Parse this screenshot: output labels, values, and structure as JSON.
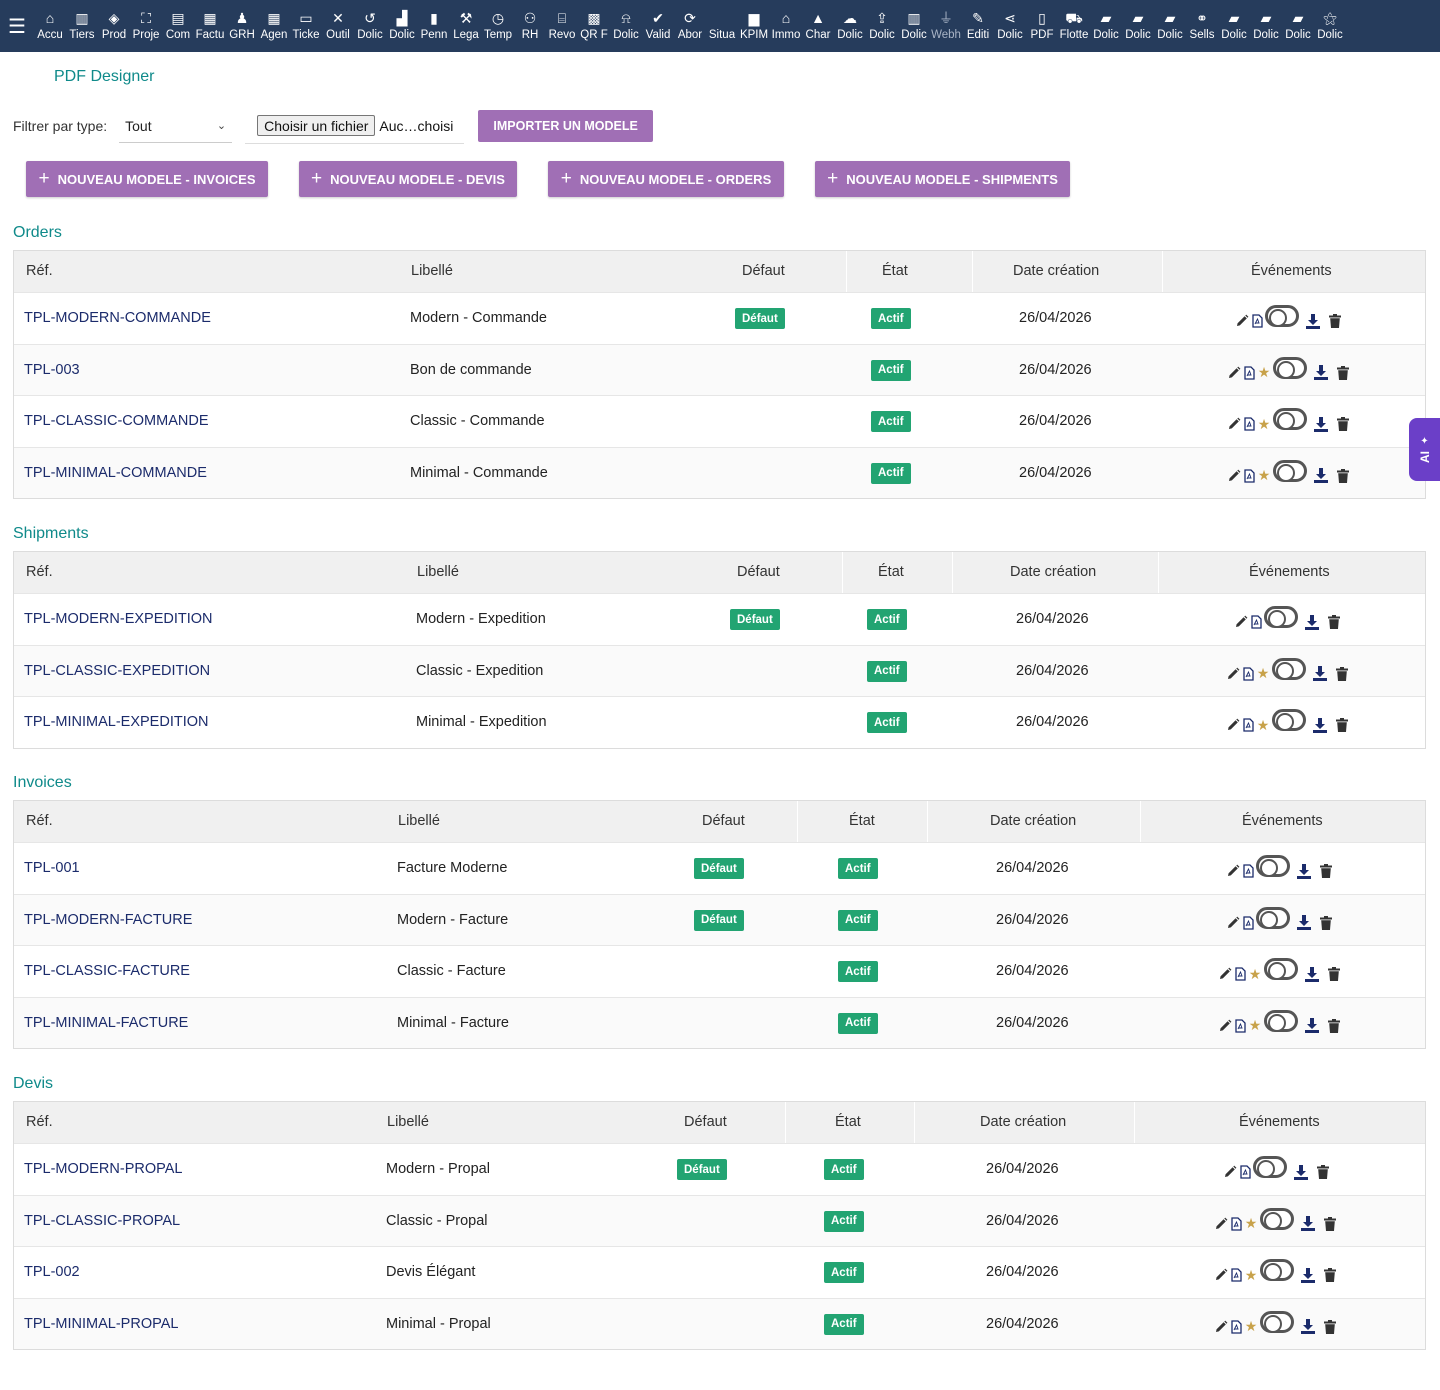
{
  "topbar": {
    "menu": [
      {
        "label": "Accu",
        "icon": "home-icon",
        "glyph": "⌂"
      },
      {
        "label": "Tiers",
        "icon": "building-icon",
        "glyph": "▥"
      },
      {
        "label": "Prod",
        "icon": "cube-icon",
        "glyph": "◈"
      },
      {
        "label": "Proje",
        "icon": "sitemap-icon",
        "glyph": "⛶"
      },
      {
        "label": "Com",
        "icon": "briefcase-icon",
        "glyph": "▤"
      },
      {
        "label": "Factu",
        "icon": "invoice-icon",
        "glyph": "▦"
      },
      {
        "label": "GRH",
        "icon": "user-tie-icon",
        "glyph": "♟"
      },
      {
        "label": "Agen",
        "icon": "calendar-icon",
        "glyph": "▦"
      },
      {
        "label": "Ticke",
        "icon": "ticket-icon",
        "glyph": "▭"
      },
      {
        "label": "Outil",
        "icon": "tools-icon",
        "glyph": "✕"
      },
      {
        "label": "Dolic",
        "icon": "undo-icon",
        "glyph": "↺"
      },
      {
        "label": "Dolic",
        "icon": "cash-register-icon",
        "glyph": "▟"
      },
      {
        "label": "Penn",
        "icon": "document-icon",
        "glyph": "▮"
      },
      {
        "label": "Lega",
        "icon": "gavel-icon",
        "glyph": "⚒"
      },
      {
        "label": "Temp",
        "icon": "clock-icon",
        "glyph": "◷"
      },
      {
        "label": "RH",
        "icon": "users-icon",
        "glyph": "⚇"
      },
      {
        "label": "Revo",
        "icon": "bank-icon",
        "glyph": "⌸"
      },
      {
        "label": "QR F",
        "icon": "qrcode-icon",
        "glyph": "▩"
      },
      {
        "label": "Dolic",
        "icon": "bell-icon",
        "glyph": "⍾"
      },
      {
        "label": "Valid",
        "icon": "check-double-icon",
        "glyph": "✔"
      },
      {
        "label": "Abor",
        "icon": "sync-icon",
        "glyph": "⟳"
      },
      {
        "label": "Situa",
        "icon": "blank-icon",
        "glyph": " "
      },
      {
        "label": "KPIM",
        "icon": "bar-chart-icon",
        "glyph": "▆"
      },
      {
        "label": "Immo",
        "icon": "house-icon",
        "glyph": "⌂"
      },
      {
        "label": "Char",
        "icon": "warehouse-icon",
        "glyph": "▲"
      },
      {
        "label": "Dolic",
        "icon": "cloud-icon",
        "glyph": "☁"
      },
      {
        "label": "Dolic",
        "icon": "upload-icon",
        "glyph": "⇪"
      },
      {
        "label": "Dolic",
        "icon": "building-alt-icon",
        "glyph": "▥"
      },
      {
        "label": "Webh",
        "icon": "plug-icon",
        "glyph": "⏚",
        "dim": true
      },
      {
        "label": "Editi",
        "icon": "edit-icon",
        "glyph": "✎"
      },
      {
        "label": "Dolic",
        "icon": "share-icon",
        "glyph": "⋖"
      },
      {
        "label": "PDF",
        "icon": "file-pdf-icon",
        "glyph": "▯"
      },
      {
        "label": "Flotte",
        "icon": "car-icon",
        "glyph": "⛟"
      },
      {
        "label": "Dolic",
        "icon": "file-icon",
        "glyph": "▰"
      },
      {
        "label": "Dolic",
        "icon": "file-icon",
        "glyph": "▰"
      },
      {
        "label": "Dolic",
        "icon": "file-icon",
        "glyph": "▰"
      },
      {
        "label": "Sells",
        "icon": "handshake-icon",
        "glyph": "⚭"
      },
      {
        "label": "Dolic",
        "icon": "file-icon",
        "glyph": "▰"
      },
      {
        "label": "Dolic",
        "icon": "file-icon",
        "glyph": "▰"
      },
      {
        "label": "Dolic",
        "icon": "file-icon",
        "glyph": "▰"
      },
      {
        "label": "Dolic",
        "icon": "magic-icon",
        "glyph": "⚝"
      }
    ]
  },
  "page": {
    "title": "PDF Designer",
    "filter_label": "Filtrer par type:",
    "filter_value": "Tout",
    "file_button": "Choisir un fichier",
    "file_name": "Auc…choisi",
    "import_button": "IMPORTER UN MODELE",
    "new_buttons": [
      {
        "label": "NOUVEAU MODELE - INVOICES"
      },
      {
        "label": "NOUVEAU MODELE - DEVIS"
      },
      {
        "label": "NOUVEAU MODELE - ORDERS"
      },
      {
        "label": "NOUVEAU MODELE - SHIPMENTS"
      }
    ]
  },
  "columns": {
    "ref": "Réf.",
    "libelle": "Libellé",
    "defaut": "Défaut",
    "etat": "État",
    "date": "Date création",
    "events": "Événements"
  },
  "badges": {
    "default": "Défaut",
    "active": "Actif"
  },
  "sections": [
    {
      "title": "Orders",
      "rows": [
        {
          "ref": "TPL-MODERN-COMMANDE",
          "libelle": "Modern - Commande",
          "default": true,
          "etat": "Actif",
          "date": "26/04/2026",
          "star": false
        },
        {
          "ref": "TPL-003",
          "libelle": "Bon de commande",
          "default": false,
          "etat": "Actif",
          "date": "26/04/2026",
          "star": true
        },
        {
          "ref": "TPL-CLASSIC-COMMANDE",
          "libelle": "Classic - Commande",
          "default": false,
          "etat": "Actif",
          "date": "26/04/2026",
          "star": true
        },
        {
          "ref": "TPL-MINIMAL-COMMANDE",
          "libelle": "Minimal - Commande",
          "default": false,
          "etat": "Actif",
          "date": "26/04/2026",
          "star": true
        }
      ]
    },
    {
      "title": "Shipments",
      "rows": [
        {
          "ref": "TPL-MODERN-EXPEDITION",
          "libelle": "Modern - Expedition",
          "default": true,
          "etat": "Actif",
          "date": "26/04/2026",
          "star": false
        },
        {
          "ref": "TPL-CLASSIC-EXPEDITION",
          "libelle": "Classic - Expedition",
          "default": false,
          "etat": "Actif",
          "date": "26/04/2026",
          "star": true
        },
        {
          "ref": "TPL-MINIMAL-EXPEDITION",
          "libelle": "Minimal - Expedition",
          "default": false,
          "etat": "Actif",
          "date": "26/04/2026",
          "star": true
        }
      ]
    },
    {
      "title": "Invoices",
      "rows": [
        {
          "ref": "TPL-001",
          "libelle": "Facture Moderne",
          "default": true,
          "etat": "Actif",
          "date": "26/04/2026",
          "star": false
        },
        {
          "ref": "TPL-MODERN-FACTURE",
          "libelle": "Modern - Facture",
          "default": true,
          "etat": "Actif",
          "date": "26/04/2026",
          "star": false
        },
        {
          "ref": "TPL-CLASSIC-FACTURE",
          "libelle": "Classic - Facture",
          "default": false,
          "etat": "Actif",
          "date": "26/04/2026",
          "star": true
        },
        {
          "ref": "TPL-MINIMAL-FACTURE",
          "libelle": "Minimal - Facture",
          "default": false,
          "etat": "Actif",
          "date": "26/04/2026",
          "star": true
        }
      ]
    },
    {
      "title": "Devis",
      "rows": [
        {
          "ref": "TPL-MODERN-PROPAL",
          "libelle": "Modern - Propal",
          "default": true,
          "etat": "Actif",
          "date": "26/04/2026",
          "star": false
        },
        {
          "ref": "TPL-CLASSIC-PROPAL",
          "libelle": "Classic - Propal",
          "default": false,
          "etat": "Actif",
          "date": "26/04/2026",
          "star": true
        },
        {
          "ref": "TPL-002",
          "libelle": "Devis Élégant",
          "default": false,
          "etat": "Actif",
          "date": "26/04/2026",
          "star": true
        },
        {
          "ref": "TPL-MINIMAL-PROPAL",
          "libelle": "Minimal - Propal",
          "default": false,
          "etat": "Actif",
          "date": "26/04/2026",
          "star": true
        }
      ]
    }
  ],
  "ai_tab": {
    "label": "AI"
  },
  "colors": {
    "topbar": "#263c5c",
    "accent": "#a06fb5",
    "title": "#0f8a8a",
    "badge": "#22a472",
    "link": "#1b2b6b",
    "ai": "#6b3fc8"
  }
}
